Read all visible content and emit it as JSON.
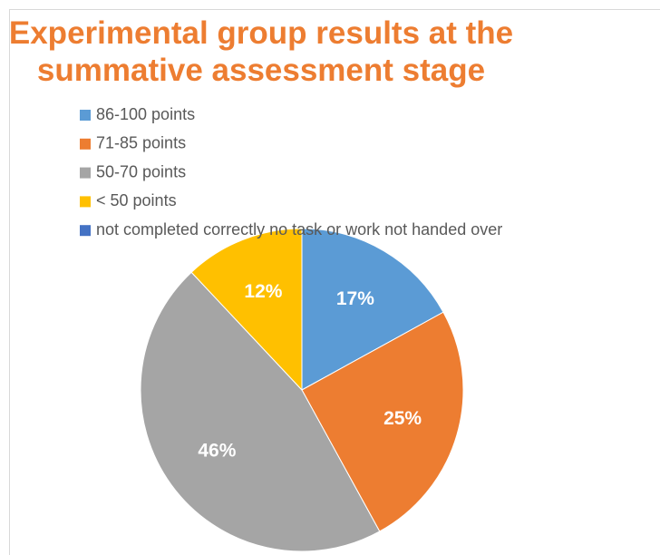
{
  "chart_data": {
    "type": "pie",
    "title": "Experimental group results at the summative assessment stage",
    "categories": [
      "86-100 points",
      "71-85 points",
      "50-70 points",
      "< 50 points",
      "not completed correctly no task or work not handed over"
    ],
    "values": [
      17,
      25,
      46,
      12,
      0
    ],
    "value_labels": [
      "17%",
      "25%",
      "46%",
      "12%",
      null
    ],
    "colors": [
      "#5b9bd5",
      "#ed7d31",
      "#a5a5a5",
      "#ffc000",
      "#4472c4"
    ],
    "legend": "top-left"
  }
}
